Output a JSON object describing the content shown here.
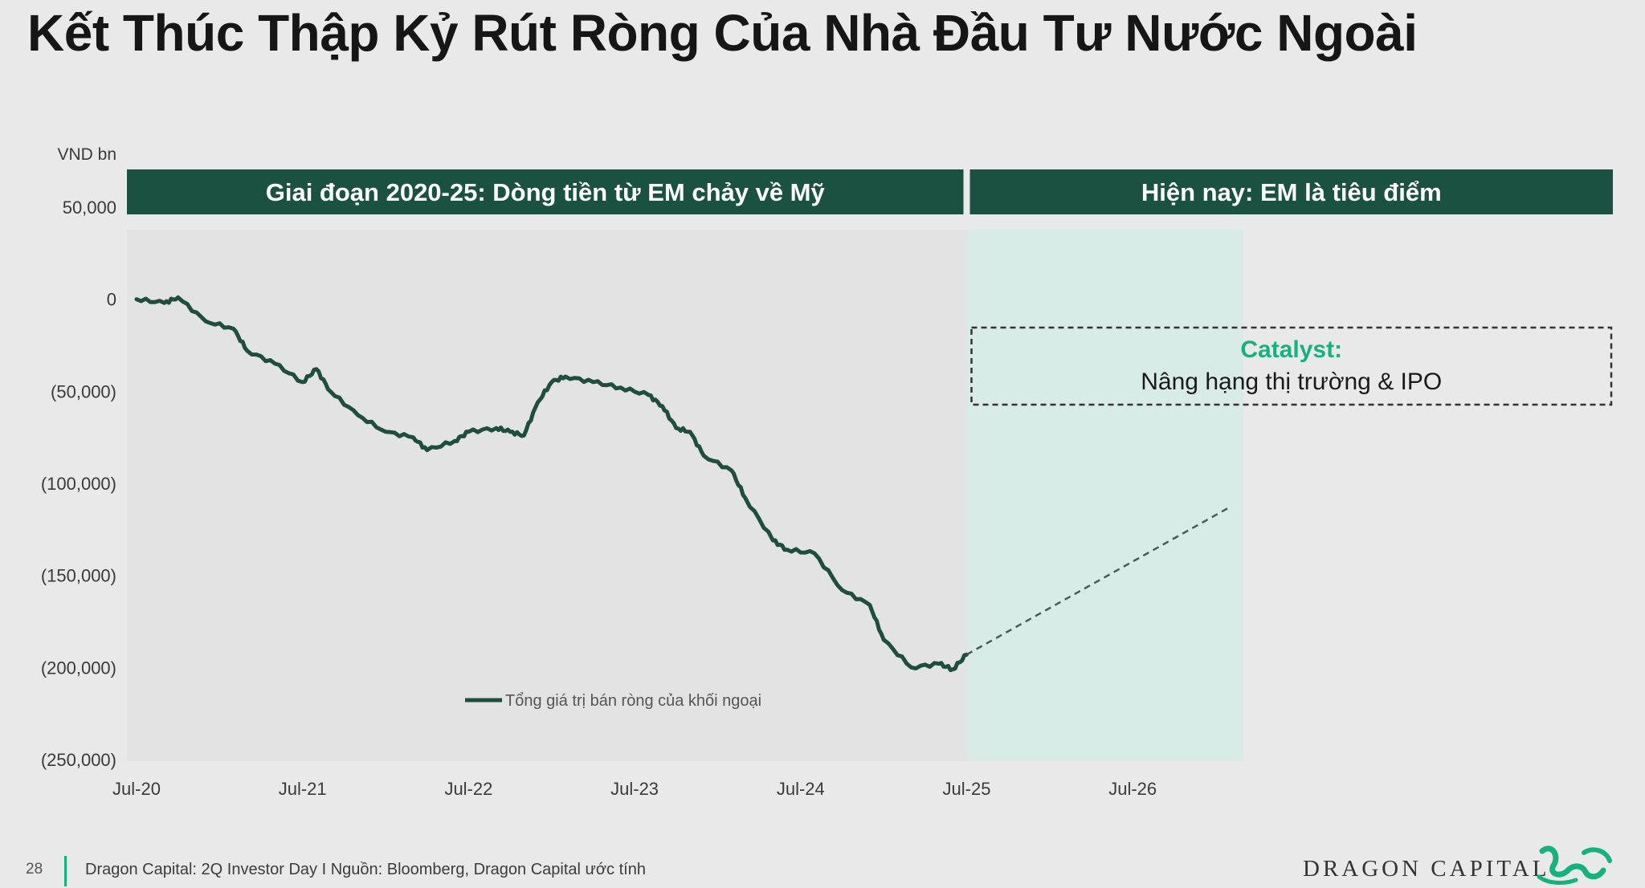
{
  "slide": {
    "title": "Kết Thúc Thập Kỷ Rút Ròng Của Nhà Đầu Tư Nước Ngoài",
    "page_number": "28",
    "source": "Dragon Capital: 2Q Investor Day I Nguồn: Bloomberg, Dragon Capital ước tính",
    "brand": "DRAGON CAPITAL",
    "logo_icon": "dragon-logo-icon"
  },
  "colors": {
    "line": "#1f4e3d",
    "banner": "#1b5141",
    "highlight": "#15b27f",
    "forecast_fill": "#d8ebe7"
  },
  "chart_data": {
    "type": "line",
    "ylabel": "VND bn",
    "ylim": [
      -250000,
      50000
    ],
    "yticks": [
      50000,
      0,
      -50000,
      -100000,
      -150000,
      -200000,
      -250000
    ],
    "ytick_labels": [
      "50,000",
      "0",
      "(50,000)",
      "(100,000)",
      "(150,000)",
      "(200,000)",
      "(250,000)"
    ],
    "x_range": [
      "2020-07",
      "2027-03"
    ],
    "xtick_dates": [
      "2020-07",
      "2021-07",
      "2022-07",
      "2023-07",
      "2024-07",
      "2025-07",
      "2026-07"
    ],
    "xtick_labels": [
      "Jul-20",
      "Jul-21",
      "Jul-22",
      "Jul-23",
      "Jul-24",
      "Jul-25",
      "Jul-26"
    ],
    "grid": false,
    "legend": "bottom-left",
    "series": [
      {
        "name": "Tổng giá trị bán ròng của khối ngoại",
        "x": [
          "2020-07",
          "2020-09",
          "2020-10",
          "2020-12",
          "2021-02",
          "2021-03",
          "2021-05",
          "2021-07",
          "2021-08",
          "2021-09",
          "2021-11",
          "2022-01",
          "2022-03",
          "2022-04",
          "2022-06",
          "2022-07",
          "2022-09",
          "2022-10",
          "2022-11",
          "2022-12",
          "2023-01",
          "2023-02",
          "2023-04",
          "2023-06",
          "2023-08",
          "2023-09",
          "2023-10",
          "2023-11",
          "2023-12",
          "2024-02",
          "2024-03",
          "2024-05",
          "2024-06",
          "2024-08",
          "2024-10",
          "2024-12",
          "2025-01",
          "2025-03",
          "2025-05",
          "2025-06",
          "2025-07"
        ],
        "values": [
          0,
          -2000,
          1000,
          -12000,
          -16000,
          -28000,
          -35000,
          -45000,
          -38000,
          -50000,
          -63000,
          -72000,
          -75000,
          -82000,
          -77000,
          -72000,
          -70000,
          -72000,
          -74000,
          -56000,
          -45000,
          -42000,
          -45000,
          -48000,
          -52000,
          -58000,
          -70000,
          -72000,
          -85000,
          -93000,
          -108000,
          -131000,
          -136000,
          -138000,
          -158000,
          -166000,
          -185000,
          -200000,
          -198000,
          -201000,
          -193000
        ]
      },
      {
        "name": "",
        "style": "dashed",
        "x": [
          "2025-07",
          "2027-02"
        ],
        "values": [
          -193000,
          -113000
        ]
      }
    ],
    "banners": [
      {
        "text": "Giai đoạn 2020-25: Dòng tiền từ EM chảy về Mỹ",
        "from": "2020-07",
        "to": "2025-07"
      },
      {
        "text": "Hiện nay: EM là tiêu điểm",
        "from": "2025-07",
        "to": "2027-03"
      }
    ],
    "forecast_region": {
      "from": "2025-07",
      "to": "2027-03"
    },
    "annotation": {
      "title": "Catalyst:",
      "text": "Nâng hạng thị trường & IPO"
    }
  }
}
